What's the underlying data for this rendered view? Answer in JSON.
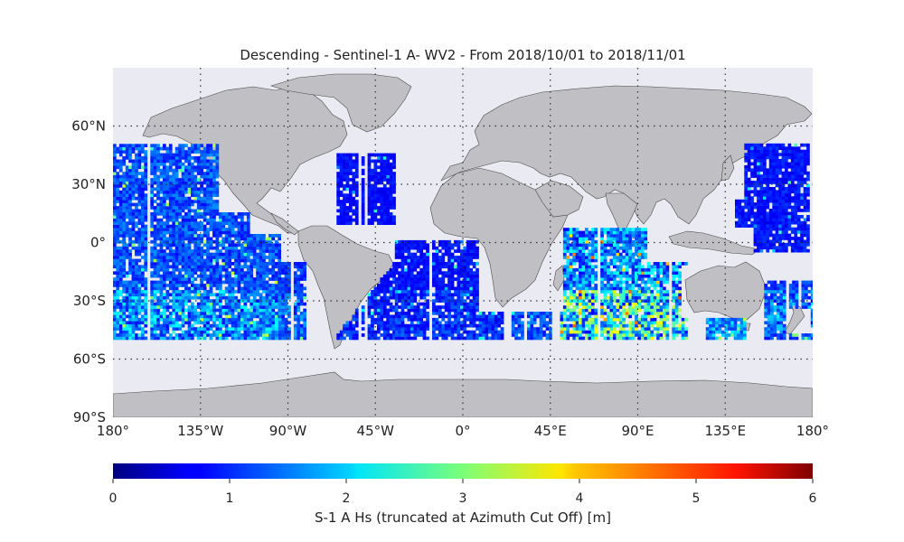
{
  "title": "Descending - Sentinel-1 A- WV2 - From 2018/10/01 to 2018/11/01",
  "map": {
    "projection": "equirectangular",
    "lon_range": [
      -180,
      180
    ],
    "lat_range": [
      -90,
      90
    ],
    "background_color": "#eaeaf2",
    "land_color": "#c0c0c4",
    "gridline_style": "dotted",
    "lat_ticks": [
      {
        "value": 60,
        "label": "60°N"
      },
      {
        "value": 30,
        "label": "30°N"
      },
      {
        "value": 0,
        "label": "0°"
      },
      {
        "value": -30,
        "label": "30°S"
      },
      {
        "value": -60,
        "label": "60°S"
      },
      {
        "value": -90,
        "label": "90°S"
      }
    ],
    "lon_ticks": [
      {
        "value": -180,
        "label": "180°"
      },
      {
        "value": -135,
        "label": "135°W"
      },
      {
        "value": -90,
        "label": "90°W"
      },
      {
        "value": -45,
        "label": "45°W"
      },
      {
        "value": 0,
        "label": "0°"
      },
      {
        "value": 45,
        "label": "45°E"
      },
      {
        "value": 90,
        "label": "90°E"
      },
      {
        "value": 135,
        "label": "135°E"
      },
      {
        "value": 180,
        "label": "180°"
      }
    ]
  },
  "colorbar": {
    "label": "S-1 A Hs (truncated at Azimuth Cut Off) [m]",
    "colormap": "jet",
    "min": 0,
    "max": 6,
    "ticks": [
      "0",
      "1",
      "2",
      "3",
      "4",
      "5",
      "6"
    ]
  },
  "chart_data": {
    "type": "heatmap",
    "variable": "Hs",
    "units": "m",
    "value_range": [
      0,
      6
    ],
    "lat_coverage": [
      -50,
      50
    ],
    "swath_regions": [
      {
        "lon": [
          -180,
          -95
        ],
        "lat": [
          -50,
          50
        ],
        "hs_typical": [
          0.8,
          2.3
        ]
      },
      {
        "lon": [
          -95,
          -80
        ],
        "lat": [
          -50,
          -10
        ],
        "hs_typical": [
          0.8,
          1.8
        ]
      },
      {
        "lon": [
          -65,
          -35
        ],
        "lat": [
          -50,
          45
        ],
        "hs_typical": [
          0.6,
          1.3
        ]
      },
      {
        "lon": [
          -35,
          20
        ],
        "lat": [
          -50,
          0
        ],
        "hs_typical": [
          0.6,
          1.4
        ]
      },
      {
        "lon": [
          25,
          45
        ],
        "lat": [
          -50,
          -30
        ],
        "hs_typical": [
          0.8,
          1.6
        ]
      },
      {
        "lon": [
          50,
          115
        ],
        "lat": [
          -50,
          20
        ],
        "hs_typical": [
          0.7,
          3.8
        ]
      },
      {
        "lon": [
          125,
          145
        ],
        "lat": [
          -50,
          -35
        ],
        "hs_typical": [
          1.0,
          2.2
        ]
      },
      {
        "lon": [
          140,
          180
        ],
        "lat": [
          -5,
          50
        ],
        "hs_typical": [
          0.6,
          1.5
        ]
      },
      {
        "lon": [
          155,
          180
        ],
        "lat": [
          -50,
          -20
        ],
        "hs_typical": [
          0.8,
          2.0
        ]
      }
    ]
  }
}
